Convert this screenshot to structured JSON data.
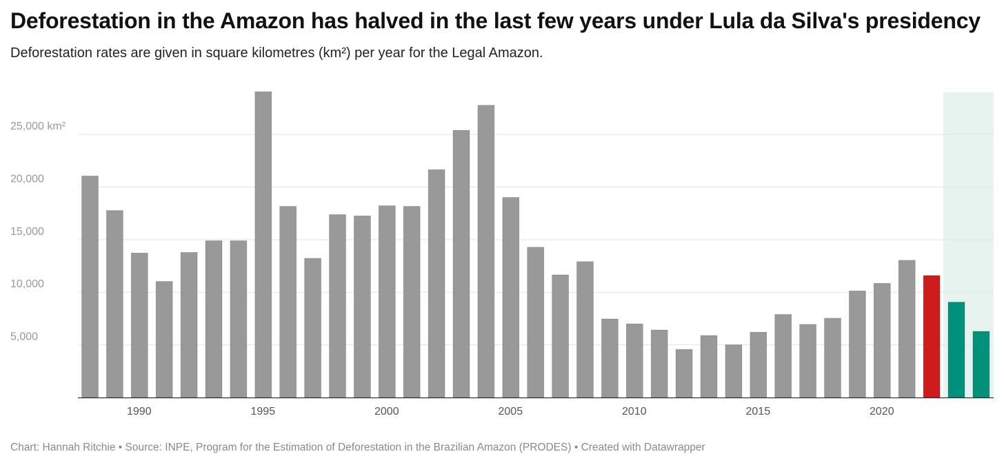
{
  "title": "Deforestation in the Amazon has halved in the last few years under Lula da Silva's presidency",
  "subtitle": "Deforestation rates are given in square kilometres (km²) per year for the Legal Amazon.",
  "footer": {
    "chart_by": "Chart: Hannah Ritchie",
    "separator": " • ",
    "source": "Source: INPE, Program for the Estimation of Deforestation in the Brazilian Amazon (PRODES)",
    "created_with": "Created with Datawrapper"
  },
  "colors": {
    "default_bar": "#999999",
    "highlight_red": "#cc1c1c",
    "highlight_green": "#00917a",
    "highlight_band": "#e6f3ef",
    "gridline": "#e3e3e3",
    "axis": "#333333"
  },
  "chart_data": {
    "type": "bar",
    "title": "Deforestation in the Amazon has halved in the last few years under Lula da Silva's presidency",
    "ylim": [
      0,
      29000
    ],
    "y_ticks": [
      5000,
      10000,
      15000,
      20000,
      25000
    ],
    "y_tick_labels": [
      "5,000",
      "10,000",
      "15,000",
      "20,000",
      "25,000 km²"
    ],
    "x_ticks": [
      1990,
      1995,
      2000,
      2005,
      2010,
      2015,
      2020
    ],
    "x_tick_labels": [
      "1990",
      "1995",
      "2000",
      "2005",
      "2010",
      "2015",
      "2020"
    ],
    "grid": true,
    "highlight_years": [
      2023,
      2024
    ],
    "categories": [
      1988,
      1989,
      1990,
      1991,
      1992,
      1993,
      1994,
      1995,
      1996,
      1997,
      1998,
      1999,
      2000,
      2001,
      2002,
      2003,
      2004,
      2005,
      2006,
      2007,
      2008,
      2009,
      2010,
      2011,
      2012,
      2013,
      2014,
      2015,
      2016,
      2017,
      2018,
      2019,
      2020,
      2021,
      2022,
      2023,
      2024
    ],
    "values": [
      21050,
      17770,
      13730,
      11030,
      13786,
      14896,
      14896,
      29059,
      18161,
      13227,
      17383,
      17259,
      18226,
      18165,
      21650,
      25396,
      27772,
      19014,
      14286,
      11651,
      12911,
      7464,
      7000,
      6418,
      4571,
      5891,
      5012,
      6207,
      7893,
      6947,
      7536,
      10129,
      10851,
      13038,
      11594,
      9064,
      6288
    ],
    "bar_colors": [
      "default",
      "default",
      "default",
      "default",
      "default",
      "default",
      "default",
      "default",
      "default",
      "default",
      "default",
      "default",
      "default",
      "default",
      "default",
      "default",
      "default",
      "default",
      "default",
      "default",
      "default",
      "default",
      "default",
      "default",
      "default",
      "default",
      "default",
      "default",
      "default",
      "default",
      "default",
      "default",
      "default",
      "default",
      "red",
      "green",
      "green"
    ]
  }
}
